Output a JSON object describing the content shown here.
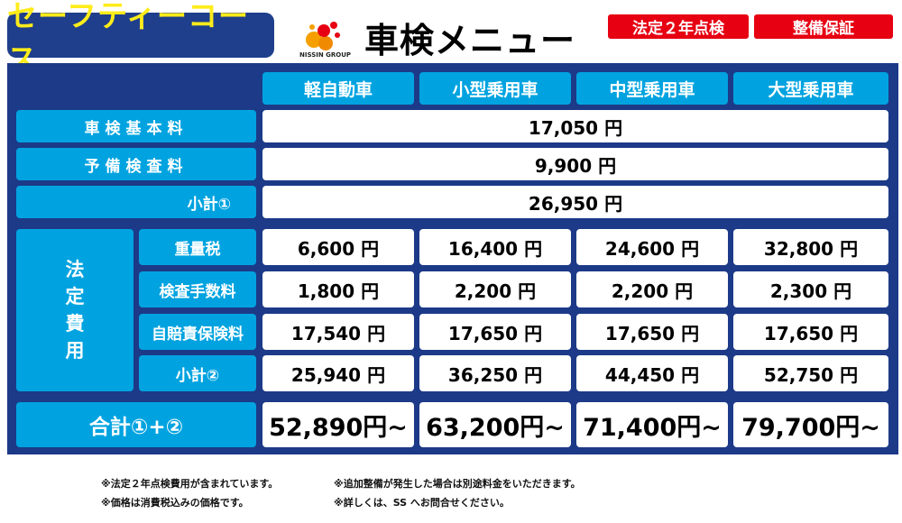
{
  "header": {
    "course_name": "セーフティーコース",
    "logo_text": "NISSIN GROUP",
    "title": "車検メニュー",
    "badges": [
      "法定２年点検",
      "整備保証"
    ]
  },
  "table": {
    "vehicle_types": [
      "軽自動車",
      "小型乗用車",
      "中型乗用車",
      "大型乗用車"
    ],
    "base_fee": {
      "label": "車検基本料",
      "value": "17,050 円"
    },
    "inspection_fee": {
      "label": "予備検査料",
      "value": "9,900 円"
    },
    "subtotal1": {
      "label": "小計①",
      "value": "26,950 円"
    },
    "legal_fees": {
      "group_label": [
        "法",
        "定",
        "費",
        "用"
      ],
      "rows": [
        {
          "label": "重量税",
          "values": [
            "6,600 円",
            "16,400 円",
            "24,600 円",
            "32,800 円"
          ]
        },
        {
          "label": "検査手数料",
          "values": [
            "1,800 円",
            "2,200 円",
            "2,200 円",
            "2,300 円"
          ]
        },
        {
          "label": "自賠責保険料",
          "values": [
            "17,540 円",
            "17,650 円",
            "17,650 円",
            "17,650 円"
          ]
        },
        {
          "label": "小計②",
          "values": [
            "25,940 円",
            "36,250 円",
            "44,450 円",
            "52,750 円"
          ]
        }
      ]
    },
    "total": {
      "label": "合計①+②",
      "values": [
        "52,890円~",
        "63,200円~",
        "71,400円~",
        "79,700円~"
      ]
    }
  },
  "notes": [
    "※法定２年点検費用が含まれています。",
    "※追加整備が発生した場合は別途料金をいただきます。",
    "※価格は消費税込みの価格です。",
    "※詳しくは、SS へお問合せください。"
  ],
  "colors": {
    "navy": "#1c3a88",
    "cyan": "#00a3e0",
    "yellow": "#ffec1a",
    "red": "#e60012"
  }
}
